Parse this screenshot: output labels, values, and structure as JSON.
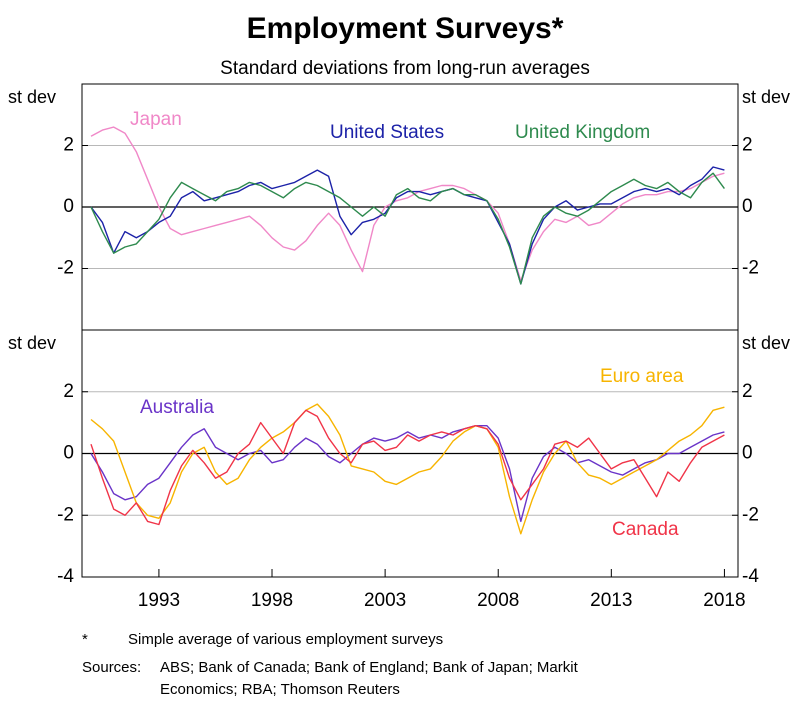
{
  "title": "Employment Surveys*",
  "subtitle": "Standard deviations from long-run averages",
  "notes": [
    {
      "marker": "*",
      "text": "Simple average of various employment surveys"
    }
  ],
  "sources": {
    "label": "Sources:",
    "lines": [
      "ABS; Bank of Canada; Bank of England; Bank of Japan; Markit",
      "Economics; RBA; Thomson Reuters"
    ]
  },
  "chart_data": [
    {
      "type": "line",
      "y_label": "st dev",
      "y2_label": "st dev",
      "xlim": [
        1989.6,
        2018.6
      ],
      "ylim": [
        -4,
        4
      ],
      "yticks": [
        -2,
        0,
        2
      ],
      "grid": true,
      "x": [
        1990,
        1990.5,
        1991,
        1991.5,
        1992,
        1992.5,
        1993,
        1993.5,
        1994,
        1994.5,
        1995,
        1995.5,
        1996,
        1996.5,
        1997,
        1997.5,
        1998,
        1998.5,
        1999,
        1999.5,
        2000,
        2000.5,
        2001,
        2001.5,
        2002,
        2002.5,
        2003,
        2003.5,
        2004,
        2004.5,
        2005,
        2005.5,
        2006,
        2006.5,
        2007,
        2007.5,
        2008,
        2008.5,
        2009,
        2009.5,
        2010,
        2010.5,
        2011,
        2011.5,
        2012,
        2012.5,
        2013,
        2013.5,
        2014,
        2014.5,
        2015,
        2015.5,
        2016,
        2016.5,
        2017,
        2017.5,
        2018
      ],
      "series": [
        {
          "name": "Japan",
          "color": "#f088c8",
          "values": [
            2.3,
            2.5,
            2.6,
            2.4,
            1.8,
            0.9,
            0.0,
            -0.7,
            -0.9,
            -0.8,
            -0.7,
            -0.6,
            -0.5,
            -0.4,
            -0.3,
            -0.6,
            -1.0,
            -1.3,
            -1.4,
            -1.1,
            -0.6,
            -0.2,
            -0.6,
            -1.4,
            -2.1,
            -0.6,
            0.0,
            0.2,
            0.3,
            0.5,
            0.6,
            0.7,
            0.7,
            0.6,
            0.4,
            0.2,
            -0.2,
            -1.2,
            -2.4,
            -1.4,
            -0.8,
            -0.4,
            -0.5,
            -0.3,
            -0.6,
            -0.5,
            -0.2,
            0.1,
            0.3,
            0.4,
            0.4,
            0.5,
            0.5,
            0.6,
            0.8,
            1.0,
            1.1
          ]
        },
        {
          "name": "United States",
          "color": "#1c22a8",
          "values": [
            0.0,
            -0.5,
            -1.5,
            -0.8,
            -1.0,
            -0.8,
            -0.5,
            -0.3,
            0.3,
            0.5,
            0.2,
            0.3,
            0.4,
            0.5,
            0.7,
            0.8,
            0.6,
            0.7,
            0.8,
            1.0,
            1.2,
            1.0,
            -0.3,
            -0.9,
            -0.5,
            -0.4,
            -0.2,
            0.3,
            0.5,
            0.5,
            0.4,
            0.5,
            0.6,
            0.4,
            0.3,
            0.2,
            -0.5,
            -1.2,
            -2.5,
            -1.2,
            -0.4,
            0.0,
            0.2,
            -0.1,
            0.0,
            0.1,
            0.1,
            0.3,
            0.5,
            0.6,
            0.5,
            0.6,
            0.4,
            0.7,
            0.9,
            1.3,
            1.2
          ]
        },
        {
          "name": "United Kingdom",
          "color": "#2e8a4e",
          "values": [
            0.0,
            -0.8,
            -1.5,
            -1.3,
            -1.2,
            -0.8,
            -0.4,
            0.3,
            0.8,
            0.6,
            0.4,
            0.2,
            0.5,
            0.6,
            0.8,
            0.7,
            0.5,
            0.3,
            0.6,
            0.8,
            0.7,
            0.5,
            0.3,
            0.0,
            -0.3,
            0.0,
            -0.3,
            0.4,
            0.6,
            0.3,
            0.2,
            0.5,
            0.6,
            0.4,
            0.4,
            0.2,
            -0.4,
            -1.3,
            -2.5,
            -1.0,
            -0.3,
            0.0,
            -0.2,
            -0.3,
            -0.1,
            0.2,
            0.5,
            0.7,
            0.9,
            0.7,
            0.6,
            0.8,
            0.5,
            0.3,
            0.8,
            1.1,
            0.6
          ]
        }
      ]
    },
    {
      "type": "line",
      "y_label": "st dev",
      "y2_label": "st dev",
      "xlim": [
        1989.6,
        2018.6
      ],
      "ylim": [
        -4,
        4
      ],
      "yticks": [
        -4,
        -2,
        0,
        2
      ],
      "grid": true,
      "xticks": [
        1993,
        1998,
        2003,
        2008,
        2013,
        2018
      ],
      "x": [
        1990,
        1990.5,
        1991,
        1991.5,
        1992,
        1992.5,
        1993,
        1993.5,
        1994,
        1994.5,
        1995,
        1995.5,
        1996,
        1996.5,
        1997,
        1997.5,
        1998,
        1998.5,
        1999,
        1999.5,
        2000,
        2000.5,
        2001,
        2001.5,
        2002,
        2002.5,
        2003,
        2003.5,
        2004,
        2004.5,
        2005,
        2005.5,
        2006,
        2006.5,
        2007,
        2007.5,
        2008,
        2008.5,
        2009,
        2009.5,
        2010,
        2010.5,
        2011,
        2011.5,
        2012,
        2012.5,
        2013,
        2013.5,
        2014,
        2014.5,
        2015,
        2015.5,
        2016,
        2016.5,
        2017,
        2017.5,
        2018
      ],
      "series": [
        {
          "name": "Australia",
          "color": "#6a34c8",
          "values": [
            0.0,
            -0.6,
            -1.3,
            -1.5,
            -1.4,
            -1.0,
            -0.8,
            -0.3,
            0.2,
            0.6,
            0.8,
            0.2,
            0.0,
            -0.2,
            0.0,
            0.1,
            -0.3,
            -0.2,
            0.2,
            0.5,
            0.3,
            -0.1,
            -0.3,
            0.0,
            0.3,
            0.5,
            0.4,
            0.5,
            0.7,
            0.5,
            0.6,
            0.5,
            0.7,
            0.8,
            0.9,
            0.9,
            0.5,
            -0.5,
            -2.2,
            -0.8,
            -0.1,
            0.2,
            0.0,
            -0.3,
            -0.2,
            -0.4,
            -0.6,
            -0.7,
            -0.5,
            -0.3,
            -0.2,
            0.0,
            0.0,
            0.2,
            0.4,
            0.6,
            0.7
          ]
        },
        {
          "name": "Euro area",
          "color": "#f7b400",
          "values": [
            1.1,
            0.8,
            0.4,
            -0.6,
            -1.6,
            -2.0,
            -2.1,
            -1.6,
            -0.6,
            0.0,
            0.2,
            -0.6,
            -1.0,
            -0.8,
            -0.2,
            0.2,
            0.5,
            0.7,
            1.0,
            1.4,
            1.6,
            1.2,
            0.6,
            -0.4,
            -0.5,
            -0.6,
            -0.9,
            -1.0,
            -0.8,
            -0.6,
            -0.5,
            -0.1,
            0.4,
            0.7,
            0.9,
            0.8,
            0.2,
            -1.4,
            -2.6,
            -1.5,
            -0.6,
            0.0,
            0.4,
            -0.3,
            -0.7,
            -0.8,
            -1.0,
            -0.8,
            -0.6,
            -0.4,
            -0.2,
            0.1,
            0.4,
            0.6,
            0.9,
            1.4,
            1.5
          ]
        },
        {
          "name": "Canada",
          "color": "#f03448",
          "values": [
            0.3,
            -0.8,
            -1.8,
            -2.0,
            -1.6,
            -2.2,
            -2.3,
            -1.2,
            -0.4,
            0.1,
            -0.3,
            -0.8,
            -0.6,
            0.0,
            0.3,
            1.0,
            0.5,
            0.0,
            1.0,
            1.4,
            1.2,
            0.5,
            0.0,
            -0.3,
            0.3,
            0.4,
            0.1,
            0.2,
            0.6,
            0.4,
            0.6,
            0.7,
            0.6,
            0.8,
            0.9,
            0.8,
            0.3,
            -0.8,
            -1.5,
            -1.0,
            -0.5,
            0.3,
            0.4,
            0.2,
            0.5,
            0.0,
            -0.5,
            -0.3,
            -0.2,
            -0.8,
            -1.4,
            -0.6,
            -0.9,
            -0.3,
            0.2,
            0.4,
            0.6
          ]
        }
      ]
    }
  ]
}
